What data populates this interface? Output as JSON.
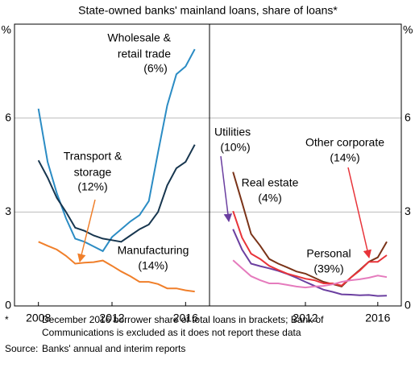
{
  "subtitle": "State-owned banks' mainland loans, share of loans*",
  "chart_data": [
    {
      "type": "line",
      "y_unit": "%",
      "xlim": [
        2006.7,
        2017.3
      ],
      "xticks": [
        2008,
        2012,
        2016
      ],
      "ylim": [
        0,
        9
      ],
      "yticks": [
        0,
        3,
        6
      ],
      "grid": true,
      "x": [
        2008,
        2008.5,
        2009,
        2009.5,
        2010,
        2010.5,
        2011,
        2011.5,
        2012,
        2012.5,
        2013,
        2013.5,
        2014,
        2014.5,
        2015,
        2015.5,
        2016,
        2016.5
      ],
      "series": [
        {
          "name_lines": [
            "Wholesale &",
            "retail trade"
          ],
          "share": "(6%)",
          "color": "#2b8cc4",
          "values": [
            6.3,
            4.6,
            3.6,
            2.8,
            2.15,
            2.05,
            1.9,
            1.75,
            2.2,
            2.45,
            2.7,
            2.9,
            3.35,
            4.9,
            6.4,
            7.4,
            7.65,
            8.2
          ]
        },
        {
          "name_lines": [
            "Manufacturing"
          ],
          "share": "(14%)",
          "color": "#17364f",
          "values": [
            4.65,
            4.1,
            3.45,
            3.0,
            2.5,
            2.4,
            2.25,
            2.15,
            2.1,
            2.05,
            2.25,
            2.45,
            2.6,
            3.0,
            3.85,
            4.4,
            4.6,
            5.15
          ]
        },
        {
          "name_lines": [
            "Transport &",
            "storage"
          ],
          "share": "(12%)",
          "color": "#f07f2a",
          "values": [
            2.05,
            1.92,
            1.8,
            1.6,
            1.35,
            1.38,
            1.4,
            1.45,
            1.28,
            1.1,
            0.95,
            0.77,
            0.77,
            0.7,
            0.56,
            0.56,
            0.5,
            0.46
          ]
        }
      ]
    },
    {
      "type": "line",
      "y_unit": "%",
      "xlim": [
        2006.7,
        2017.3
      ],
      "xticks": [
        2012,
        2016
      ],
      "ylim": [
        0,
        9
      ],
      "yticks": [
        0,
        3,
        6
      ],
      "grid": true,
      "x": [
        2008,
        2008.5,
        2009,
        2009.5,
        2010,
        2010.5,
        2011,
        2011.5,
        2012,
        2012.5,
        2013,
        2013.5,
        2014,
        2014.5,
        2015,
        2015.5,
        2016,
        2016.5
      ],
      "series": [
        {
          "name_lines": [
            "Utilities"
          ],
          "share": "(10%)",
          "color": "#6b3fa0",
          "values": [
            2.45,
            1.8,
            1.35,
            1.27,
            1.2,
            1.12,
            1.02,
            0.9,
            0.77,
            0.64,
            0.52,
            0.45,
            0.37,
            0.36,
            0.34,
            0.35,
            0.32,
            0.33
          ]
        },
        {
          "name_lines": [
            "Real estate"
          ],
          "share": "(4%)",
          "color": "#7a3318",
          "values": [
            4.28,
            3.3,
            2.3,
            1.92,
            1.5,
            1.35,
            1.23,
            1.1,
            1.03,
            0.9,
            0.77,
            0.7,
            0.62,
            0.9,
            1.15,
            1.41,
            1.55,
            2.05
          ]
        },
        {
          "name_lines": [
            "Other corporate"
          ],
          "share": "(14%)",
          "color": "#e8343a",
          "values": [
            3.03,
            2.18,
            1.67,
            1.5,
            1.28,
            1.15,
            1.03,
            0.95,
            0.87,
            0.82,
            0.72,
            0.72,
            0.65,
            0.9,
            1.13,
            1.41,
            1.41,
            1.62
          ]
        },
        {
          "name_lines": [
            "Personal"
          ],
          "share": "(39%)",
          "color": "#e57bbd",
          "values": [
            1.46,
            1.2,
            0.95,
            0.82,
            0.72,
            0.72,
            0.67,
            0.62,
            0.59,
            0.62,
            0.64,
            0.69,
            0.77,
            0.82,
            0.85,
            0.9,
            0.97,
            0.92
          ]
        }
      ]
    }
  ],
  "notes": [
    {
      "marker": "*",
      "lines": [
        "December 2016 borrower share of total loans in brackets; Bank of",
        "Communications is excluded as it does not report these data"
      ]
    },
    {
      "marker": "Source:",
      "lines": [
        "Banks' annual and interim reports"
      ]
    }
  ]
}
